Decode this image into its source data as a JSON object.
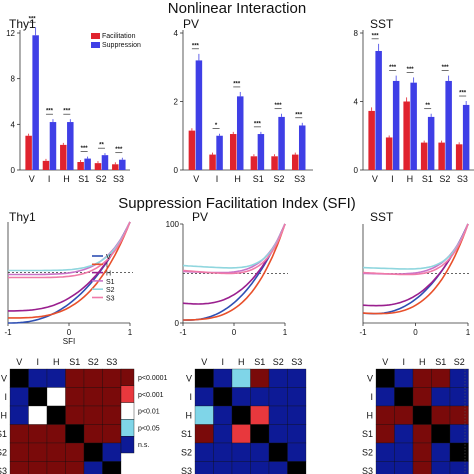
{
  "section_titles": {
    "top": "Nonlinear Interaction",
    "middle": "Suppression Facilitation Index (SFI)"
  },
  "colors": {
    "facilitation": "#e0232e",
    "suppression": "#3f3fe6",
    "V": "#2e4fb3",
    "I": "#e8502b",
    "H": "#9a1f8e",
    "S1": "#c873c8",
    "S2": "#8fd6de",
    "S3": "#f07aa8",
    "heat_black": "#000000",
    "heat_darkred": "#7a0a0a",
    "heat_red": "#e8383d",
    "heat_white": "#ffffff",
    "heat_cyan": "#7fd5e8",
    "heat_navy": "#0d1a96"
  },
  "chart_data": [
    {
      "type": "bar",
      "title": "Thy1",
      "categories": [
        "V",
        "I",
        "H",
        "S1",
        "S2",
        "S3"
      ],
      "ylim": [
        0,
        12
      ],
      "yticks": [
        0,
        4,
        8,
        12
      ],
      "legend": [
        "Facilitation",
        "Suppression"
      ],
      "series": [
        {
          "name": "Facilitation",
          "values": [
            3.0,
            0.8,
            2.2,
            0.7,
            0.6,
            0.5
          ]
        },
        {
          "name": "Suppression",
          "values": [
            11.8,
            4.2,
            4.2,
            1.0,
            1.3,
            0.9
          ]
        }
      ],
      "significance": [
        "***",
        "***",
        "***",
        "***",
        "**",
        "***"
      ]
    },
    {
      "type": "bar",
      "title": "PV",
      "categories": [
        "V",
        "I",
        "H",
        "S1",
        "S2",
        "S3"
      ],
      "ylim": [
        0,
        4
      ],
      "yticks": [
        0,
        2,
        4
      ],
      "series": [
        {
          "name": "Facilitation",
          "values": [
            1.15,
            0.45,
            1.05,
            0.4,
            0.4,
            0.45
          ]
        },
        {
          "name": "Suppression",
          "values": [
            3.2,
            1.0,
            2.15,
            1.05,
            1.55,
            1.3
          ]
        }
      ],
      "significance": [
        "***",
        "*",
        "***",
        "***",
        "***",
        "***"
      ]
    },
    {
      "type": "bar",
      "title": "SST",
      "categories": [
        "V",
        "I",
        "H",
        "S1",
        "S2",
        "S3"
      ],
      "ylim": [
        0,
        8
      ],
      "yticks": [
        0,
        4,
        8
      ],
      "series": [
        {
          "name": "Facilitation",
          "values": [
            3.45,
            1.9,
            4.0,
            1.6,
            1.6,
            1.5
          ]
        },
        {
          "name": "Suppression",
          "values": [
            6.95,
            5.2,
            5.1,
            3.1,
            5.2,
            3.8
          ]
        }
      ],
      "significance": [
        "***",
        "***",
        "***",
        "**",
        "***",
        "***"
      ]
    },
    {
      "type": "line",
      "title": "Thy1",
      "xlabel": "SFI",
      "xlim": [
        -1,
        1
      ],
      "ylim": [
        0,
        100
      ],
      "xticks": [
        -1,
        0,
        1
      ],
      "legend": [
        "V",
        "I",
        "H",
        "S1",
        "S2",
        "S3"
      ]
    },
    {
      "type": "line",
      "title": "PV",
      "xlim": [
        -1,
        1
      ],
      "ylim": [
        0,
        100
      ],
      "xticks": [
        -1,
        0,
        1
      ],
      "yticks": [
        0,
        100
      ]
    },
    {
      "type": "line",
      "title": "SST",
      "xlim": [
        -1,
        1
      ],
      "ylim": [
        0,
        100
      ],
      "xticks": [
        -1,
        0,
        1
      ]
    },
    {
      "type": "heatmap",
      "title": "Thy1",
      "labels": [
        "V",
        "I",
        "H",
        "S1",
        "S2",
        "S3"
      ],
      "matrix": [
        [
          "K",
          "N",
          "N",
          "R",
          "R",
          "R"
        ],
        [
          "N",
          "K",
          "W",
          "R",
          "R",
          "R"
        ],
        [
          "N",
          "W",
          "K",
          "R",
          "R",
          "R"
        ],
        [
          "R",
          "R",
          "R",
          "K",
          "R",
          "R"
        ],
        [
          "R",
          "R",
          "R",
          "R",
          "K",
          "N"
        ],
        [
          "R",
          "R",
          "R",
          "R",
          "N",
          "K"
        ]
      ],
      "colorbar": [
        "p<0.0001",
        "p<0.001",
        "p<0.01",
        "p<0.05",
        "n.s."
      ]
    },
    {
      "type": "heatmap",
      "title": "PV",
      "labels": [
        "V",
        "I",
        "H",
        "S1",
        "S2",
        "S3"
      ],
      "matrix": [
        [
          "K",
          "N",
          "C",
          "R",
          "N",
          "N"
        ],
        [
          "N",
          "K",
          "N",
          "N",
          "N",
          "N"
        ],
        [
          "C",
          "N",
          "K",
          "E",
          "N",
          "N"
        ],
        [
          "R",
          "N",
          "E",
          "K",
          "N",
          "N"
        ],
        [
          "N",
          "N",
          "N",
          "N",
          "K",
          "N"
        ],
        [
          "N",
          "N",
          "N",
          "N",
          "N",
          "K"
        ]
      ]
    },
    {
      "type": "heatmap",
      "title": "SST",
      "labels": [
        "V",
        "I",
        "H",
        "S1",
        "S2",
        "S3"
      ],
      "matrix": [
        [
          "K",
          "N",
          "R",
          "R",
          "N",
          "N"
        ],
        [
          "N",
          "K",
          "R",
          "N",
          "N",
          "N"
        ],
        [
          "R",
          "R",
          "K",
          "R",
          "R",
          "R"
        ],
        [
          "R",
          "N",
          "R",
          "K",
          "N",
          "N"
        ],
        [
          "N",
          "N",
          "R",
          "N",
          "K",
          "N"
        ],
        [
          "N",
          "N",
          "R",
          "N",
          "N",
          "K"
        ]
      ]
    }
  ]
}
